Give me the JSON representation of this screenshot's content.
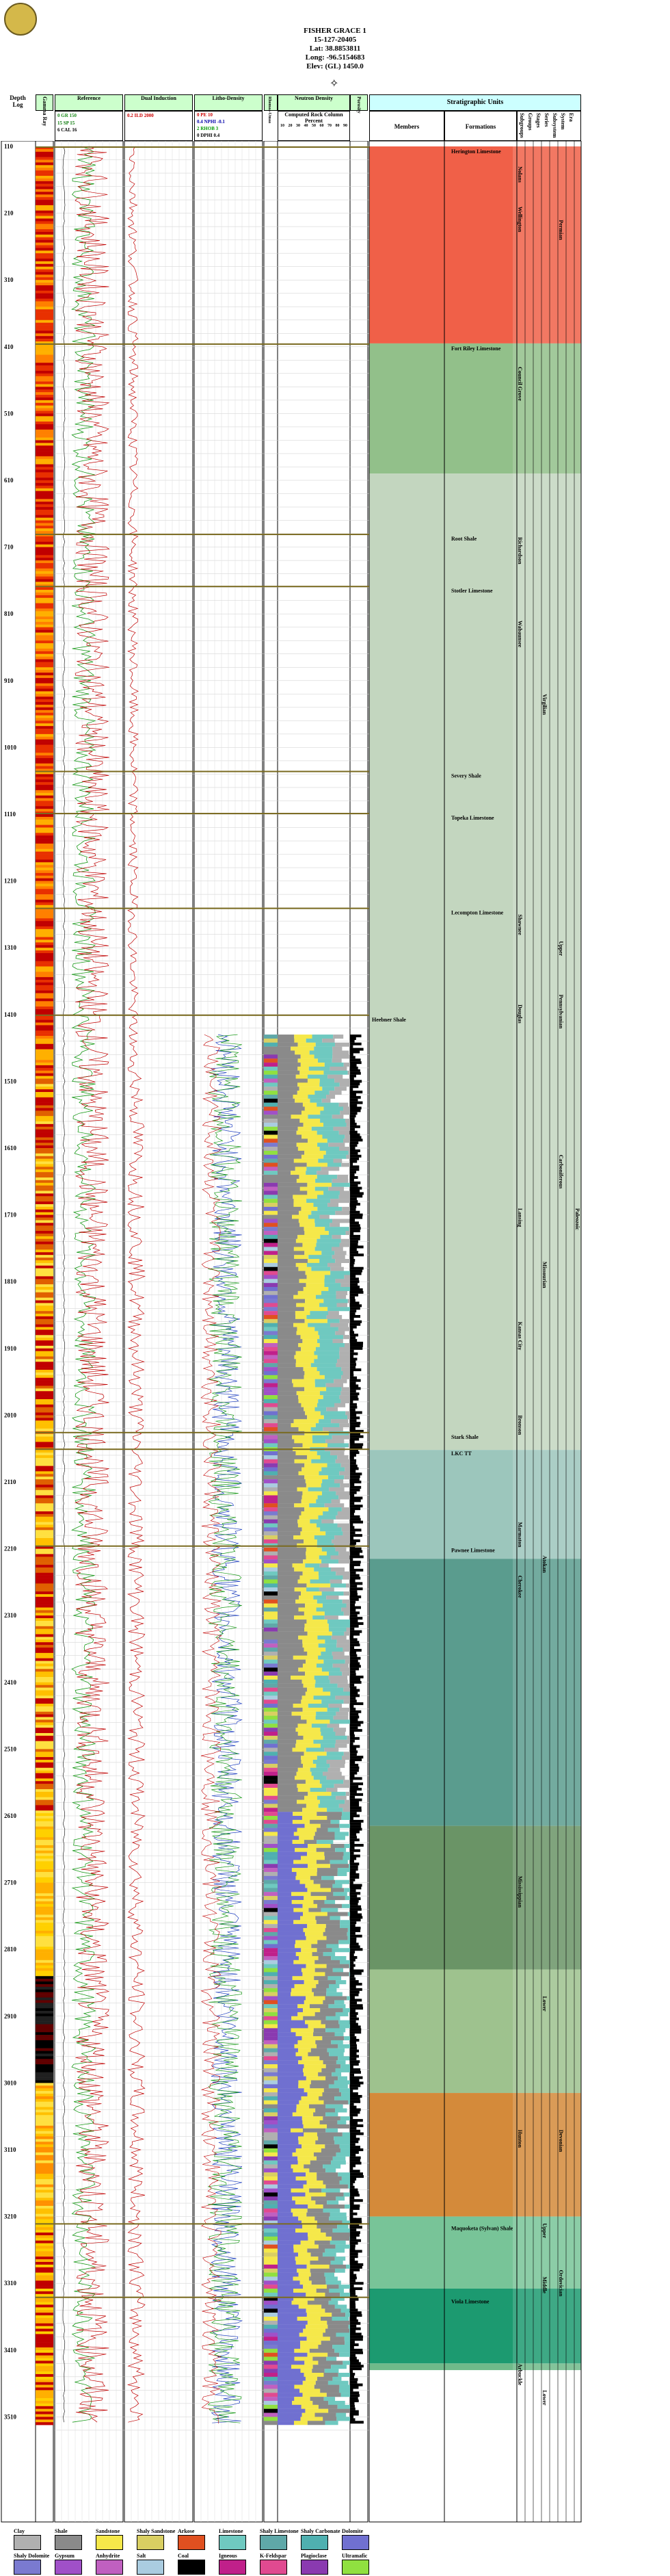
{
  "header": {
    "well_name": "FISHER GRACE 1",
    "api": "15-127-20405",
    "lat": "Lat: 38.8853811",
    "long": "Long: -96.5154683",
    "elev": "Elev: (GL) 1450.0"
  },
  "columns": {
    "depth_head_1": "Depth",
    "depth_head_2": "Log",
    "gamma_ray": "Gamma Ray",
    "reference": "Reference",
    "ref_lines": [
      "0  GR  150",
      "15  SP  15",
      "6  CAL  16"
    ],
    "dual_induction": "Dual Induction",
    "dual_lines": [
      "0.2  ILD  2000"
    ],
    "litho_density": "Litho-Density",
    "litho_lines": [
      "0  PE  10",
      "0.4  NPHI  -0.1",
      "2  RHOB  3",
      "0  DPHI  0.4"
    ],
    "neutron_density": "Neutron Density",
    "rhomaa_umaa": "Rhomaa-Umaa",
    "computed_title": "Computed Rock Column",
    "computed_sub": "Percent",
    "computed_ticks": [
      "10",
      "20",
      "30",
      "40",
      "50",
      "60",
      "70",
      "80",
      "90"
    ],
    "porosity": "Porosity",
    "strat_title": "Stratigraphic Units",
    "members": "Members",
    "formations": "Formations",
    "subgroups": "Subgroups",
    "groups": "Groups",
    "stages": "Stages",
    "series": "Series",
    "subsystem": "Subsystem",
    "system": "System",
    "era": "Era"
  },
  "depths": [
    "110",
    "210",
    "310",
    "410",
    "510",
    "610",
    "710",
    "810",
    "910",
    "1010",
    "1110",
    "1210",
    "1310",
    "1410",
    "1510",
    "1610",
    "1710",
    "1810",
    "1910",
    "2010",
    "2110",
    "2210",
    "2310",
    "2410",
    "2510",
    "2610",
    "2710",
    "2810",
    "2910",
    "3010",
    "3110",
    "3210",
    "3310",
    "3410",
    "3510"
  ],
  "members": [
    {
      "label": "Herington Limestone",
      "depth": 110
    },
    {
      "label": "Fort Riley Limestone",
      "depth": 405
    },
    {
      "label": "Root Shale",
      "depth": 690
    },
    {
      "label": "Stotler Limestone",
      "depth": 768
    },
    {
      "label": "Severy Shale",
      "depth": 1045
    },
    {
      "label": "Topeka Limestone",
      "depth": 1108
    },
    {
      "label": "Lecompton Limestone",
      "depth": 1250
    },
    {
      "label": "Heebner Shale",
      "depth": 1410
    },
    {
      "label": "Stark Shale",
      "depth": 2035
    },
    {
      "label": "LKC TT",
      "depth": 2060
    },
    {
      "label": "Pawnee Limestone",
      "depth": 2205
    },
    {
      "label": "Maquoketa (Sylvan) Shale",
      "depth": 3220
    },
    {
      "label": "Viola Limestone",
      "depth": 3330
    }
  ],
  "formations": [
    {
      "label": "Nolans",
      "depth": 140
    },
    {
      "label": "Wellington",
      "depth": 200
    },
    {
      "label": "Council Grove",
      "depth": 440
    },
    {
      "label": "Richardson",
      "depth": 695
    },
    {
      "label": "Wabaunsee",
      "depth": 820
    },
    {
      "label": "Shawnee",
      "depth": 1260
    },
    {
      "label": "Douglas",
      "depth": 1395
    },
    {
      "label": "Lansing",
      "depth": 1700
    },
    {
      "label": "Kansas City",
      "depth": 1870
    },
    {
      "label": "Bronson",
      "depth": 2010
    },
    {
      "label": "Marmaton",
      "depth": 2170
    },
    {
      "label": "Cherokee",
      "depth": 2250
    },
    {
      "label": "Mississippian",
      "depth": 2700
    },
    {
      "label": "Hunton",
      "depth": 3080
    },
    {
      "label": "Arbuckle",
      "depth": 3430
    }
  ],
  "series": [
    {
      "label": "Virgilian",
      "depth": 930
    },
    {
      "label": "Missourian",
      "depth": 1780
    },
    {
      "label": "Atokan",
      "depth": 2220
    },
    {
      "label": "Lower",
      "depth": 2880
    },
    {
      "label": "Upper",
      "depth": 3220
    },
    {
      "label": "Middle",
      "depth": 3300
    },
    {
      "label": "Lower",
      "depth": 3470
    }
  ],
  "systems": [
    {
      "label": "Permian",
      "depth": 220
    },
    {
      "label": "Upper",
      "depth": 1300
    },
    {
      "label": "Pennsylvanian",
      "depth": 1380
    },
    {
      "label": "Carboniferous",
      "depth": 1620
    },
    {
      "label": "Devonian",
      "depth": 3080
    },
    {
      "label": "Ordovician",
      "depth": 3290
    },
    {
      "label": "Paleozoic",
      "depth": 1700
    }
  ],
  "legend": {
    "row1": [
      "Clay",
      "Shale",
      "Sandstone",
      "Shaly Sandstone",
      "Arkose",
      "Limestone",
      "Shaly Limestone",
      "Shaly Carbonate",
      "Dolomite"
    ],
    "row2": [
      "Shaly Dolomite",
      "Gypsum",
      "Anhydrite",
      "Salt",
      "Coal",
      "Igneous",
      "K-Feldspar",
      "Plagioclase",
      "Ultramafic"
    ],
    "colors1": [
      "#b0b0b0",
      "#8a8a8a",
      "#f5e84a",
      "#d9cf62",
      "#e05020",
      "#6fc9c0",
      "#5fa8a8",
      "#4fb0b0",
      "#7070d0"
    ],
    "colors2": [
      "#7a7ad0",
      "#a050c8",
      "#c060c0",
      "#aacce0",
      "#000000",
      "#c0208a",
      "#e04a90",
      "#8a3ab0",
      "#90e040"
    ]
  }
}
